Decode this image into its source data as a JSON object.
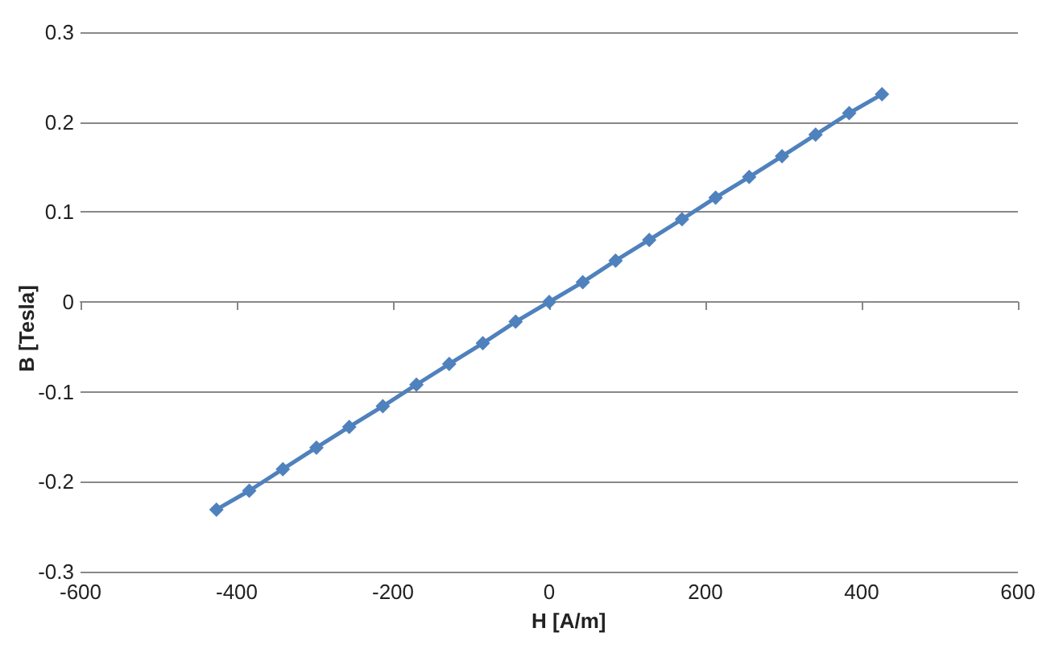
{
  "chart_data": {
    "type": "line",
    "xlabel": "H [A/m]",
    "ylabel": "B [Tesla]",
    "x": [
      -426,
      -384,
      -341,
      -298,
      -256,
      -213,
      -170,
      -128,
      -85,
      -43,
      0,
      43,
      85,
      128,
      170,
      213,
      256,
      298,
      341,
      384,
      426
    ],
    "series": [
      {
        "color": "#4f81bd",
        "values": [
          -0.231,
          -0.21,
          -0.186,
          -0.162,
          -0.139,
          -0.116,
          -0.092,
          -0.069,
          -0.046,
          -0.022,
          0,
          0.022,
          0.046,
          0.069,
          0.092,
          0.116,
          0.139,
          0.162,
          0.186,
          0.21,
          0.231
        ]
      }
    ],
    "xlim": [
      -600,
      600
    ],
    "xticks": [
      -600,
      -400,
      -200,
      0,
      200,
      400,
      600
    ],
    "ylim": [
      -0.3,
      0.3
    ],
    "yticks": [
      -0.3,
      -0.2,
      -0.1,
      0,
      0.1,
      0.2,
      0.3
    ],
    "grid": "y",
    "marker": "diamond",
    "line_style": "solid"
  }
}
